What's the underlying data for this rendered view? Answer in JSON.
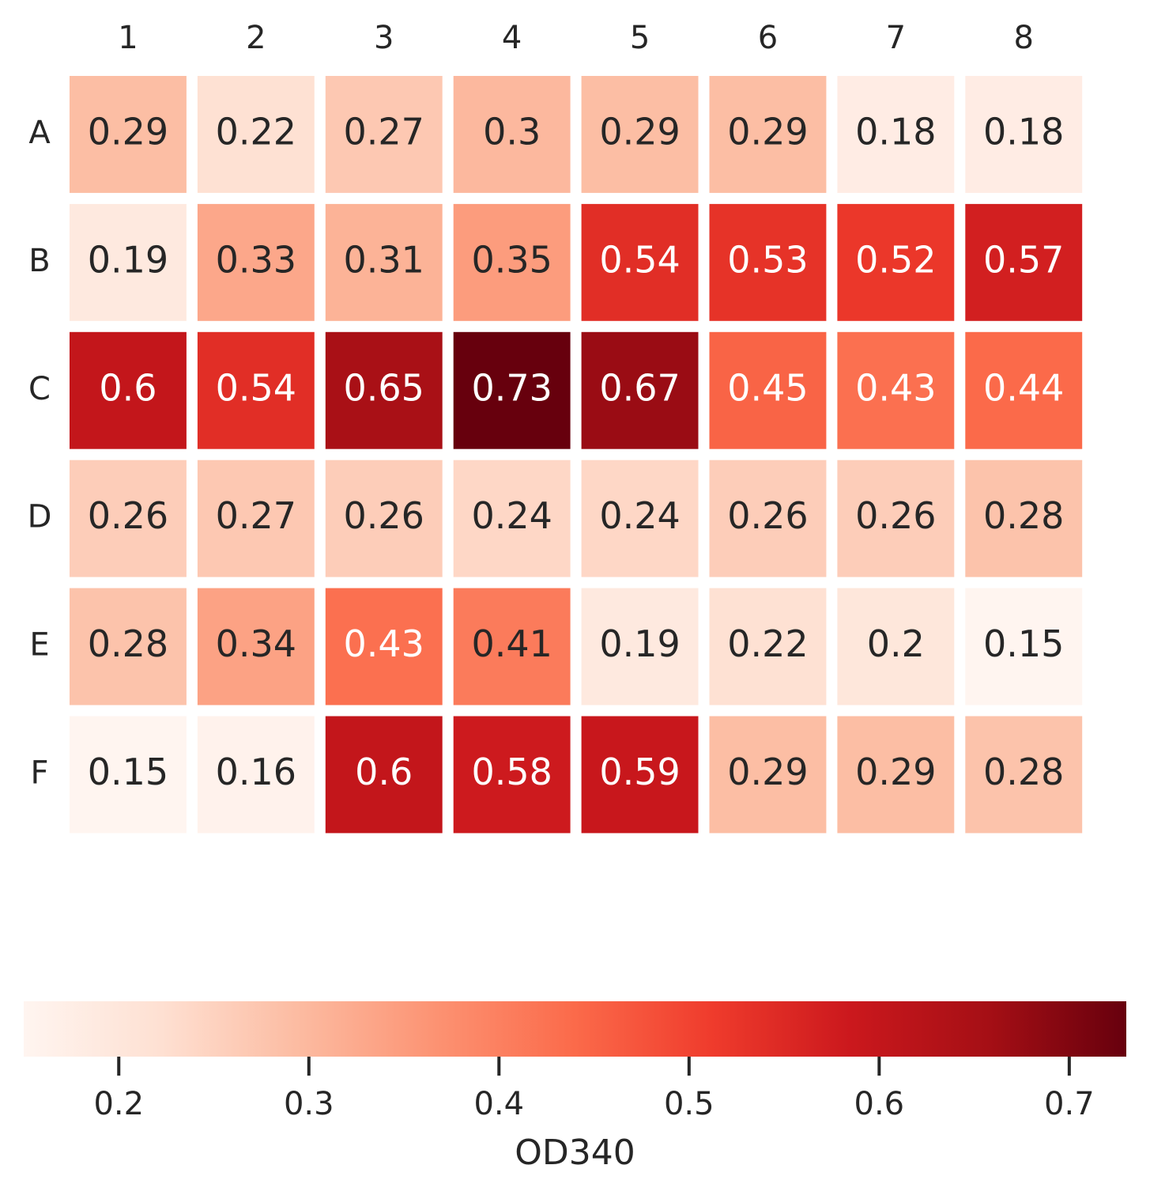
{
  "chart_data": {
    "type": "heatmap",
    "title": "",
    "x_labels": [
      "1",
      "2",
      "3",
      "4",
      "5",
      "6",
      "7",
      "8"
    ],
    "y_labels": [
      "A",
      "B",
      "C",
      "D",
      "E",
      "F"
    ],
    "values": [
      [
        0.29,
        0.22,
        0.27,
        0.3,
        0.29,
        0.29,
        0.18,
        0.18
      ],
      [
        0.19,
        0.33,
        0.31,
        0.35,
        0.54,
        0.53,
        0.52,
        0.57
      ],
      [
        0.6,
        0.54,
        0.65,
        0.73,
        0.67,
        0.45,
        0.43,
        0.44
      ],
      [
        0.26,
        0.27,
        0.26,
        0.24,
        0.24,
        0.26,
        0.26,
        0.28
      ],
      [
        0.28,
        0.34,
        0.43,
        0.41,
        0.19,
        0.22,
        0.2,
        0.15
      ],
      [
        0.15,
        0.16,
        0.6,
        0.58,
        0.59,
        0.29,
        0.29,
        0.28
      ]
    ],
    "colormap": "Reds",
    "colorbar": {
      "label": "OD340",
      "range": [
        0.15,
        0.73
      ],
      "ticks": [
        0.2,
        0.3,
        0.4,
        0.5,
        0.6,
        0.7
      ],
      "tick_labels": [
        "0.2",
        "0.3",
        "0.4",
        "0.5",
        "0.6",
        "0.7"
      ],
      "placement": "bottom"
    },
    "x_axis_position": "top",
    "grid": false
  }
}
